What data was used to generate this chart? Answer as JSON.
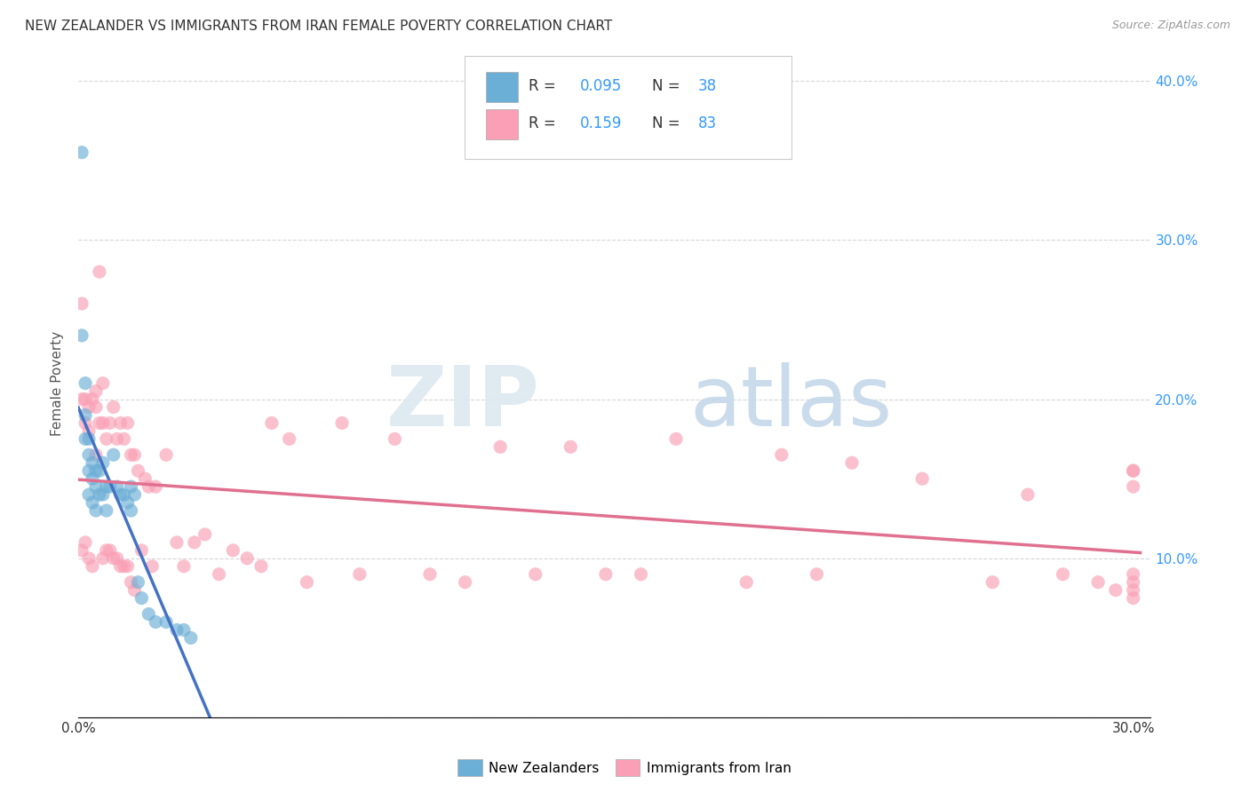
{
  "title": "NEW ZEALANDER VS IMMIGRANTS FROM IRAN FEMALE POVERTY CORRELATION CHART",
  "source": "Source: ZipAtlas.com",
  "ylabel": "Female Poverty",
  "xlim": [
    0.0,
    0.305
  ],
  "ylim": [
    0.0,
    0.42
  ],
  "xtick_vals": [
    0.0,
    0.05,
    0.1,
    0.15,
    0.2,
    0.25,
    0.3
  ],
  "xticklabels": [
    "0.0%",
    "",
    "",
    "",
    "",
    "",
    "30.0%"
  ],
  "ytick_vals": [
    0.0,
    0.1,
    0.2,
    0.3,
    0.4
  ],
  "yticklabels_right": [
    "",
    "10.0%",
    "20.0%",
    "30.0%",
    "40.0%"
  ],
  "blue_color": "#6baed6",
  "pink_color": "#fa9fb5",
  "blue_line_color": "#4472c4",
  "pink_line_color": "#e07090",
  "watermark_zip_color": "#d8e4f0",
  "watermark_atlas_color": "#b8cce4",
  "nz_x": [
    0.001,
    0.001,
    0.002,
    0.002,
    0.002,
    0.003,
    0.003,
    0.003,
    0.003,
    0.004,
    0.004,
    0.004,
    0.005,
    0.005,
    0.005,
    0.006,
    0.006,
    0.007,
    0.007,
    0.008,
    0.008,
    0.009,
    0.01,
    0.011,
    0.012,
    0.013,
    0.014,
    0.015,
    0.015,
    0.016,
    0.017,
    0.018,
    0.02,
    0.022,
    0.025,
    0.028,
    0.03,
    0.032
  ],
  "nz_y": [
    0.355,
    0.24,
    0.21,
    0.19,
    0.175,
    0.175,
    0.165,
    0.155,
    0.14,
    0.16,
    0.15,
    0.135,
    0.155,
    0.145,
    0.13,
    0.155,
    0.14,
    0.16,
    0.14,
    0.145,
    0.13,
    0.145,
    0.165,
    0.145,
    0.14,
    0.14,
    0.135,
    0.145,
    0.13,
    0.14,
    0.085,
    0.075,
    0.065,
    0.06,
    0.06,
    0.055,
    0.055,
    0.05
  ],
  "iran_x": [
    0.001,
    0.001,
    0.001,
    0.002,
    0.002,
    0.002,
    0.003,
    0.003,
    0.003,
    0.004,
    0.004,
    0.005,
    0.005,
    0.005,
    0.006,
    0.006,
    0.007,
    0.007,
    0.007,
    0.008,
    0.008,
    0.009,
    0.009,
    0.01,
    0.01,
    0.011,
    0.011,
    0.012,
    0.012,
    0.013,
    0.013,
    0.014,
    0.014,
    0.015,
    0.015,
    0.016,
    0.016,
    0.017,
    0.018,
    0.019,
    0.02,
    0.021,
    0.022,
    0.025,
    0.028,
    0.03,
    0.033,
    0.036,
    0.04,
    0.044,
    0.048,
    0.052,
    0.055,
    0.06,
    0.065,
    0.075,
    0.08,
    0.09,
    0.1,
    0.11,
    0.12,
    0.13,
    0.14,
    0.15,
    0.16,
    0.17,
    0.19,
    0.2,
    0.21,
    0.22,
    0.24,
    0.26,
    0.27,
    0.28,
    0.29,
    0.295,
    0.3,
    0.3,
    0.3,
    0.3,
    0.3,
    0.3,
    0.3
  ],
  "iran_y": [
    0.26,
    0.2,
    0.105,
    0.2,
    0.185,
    0.11,
    0.195,
    0.18,
    0.1,
    0.2,
    0.095,
    0.205,
    0.195,
    0.165,
    0.28,
    0.185,
    0.21,
    0.185,
    0.1,
    0.175,
    0.105,
    0.185,
    0.105,
    0.195,
    0.1,
    0.175,
    0.1,
    0.185,
    0.095,
    0.175,
    0.095,
    0.185,
    0.095,
    0.165,
    0.085,
    0.165,
    0.08,
    0.155,
    0.105,
    0.15,
    0.145,
    0.095,
    0.145,
    0.165,
    0.11,
    0.095,
    0.11,
    0.115,
    0.09,
    0.105,
    0.1,
    0.095,
    0.185,
    0.175,
    0.085,
    0.185,
    0.09,
    0.175,
    0.09,
    0.085,
    0.17,
    0.09,
    0.17,
    0.09,
    0.09,
    0.175,
    0.085,
    0.165,
    0.09,
    0.16,
    0.15,
    0.085,
    0.14,
    0.09,
    0.085,
    0.08,
    0.155,
    0.145,
    0.09,
    0.085,
    0.08,
    0.075,
    0.155
  ]
}
